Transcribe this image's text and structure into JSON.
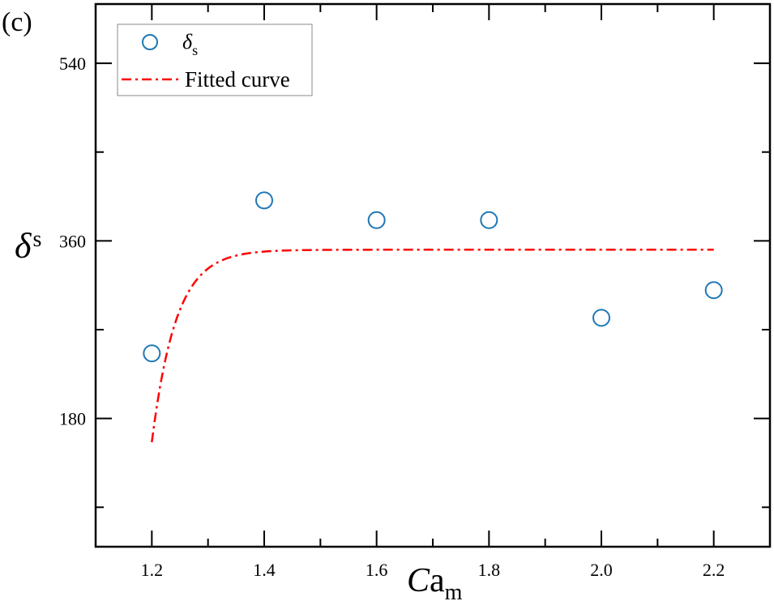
{
  "panel_label": "(c)",
  "chart_data": {
    "type": "scatter",
    "xlabel": {
      "main": "C",
      "rest": "a",
      "sub": "m"
    },
    "ylabel": {
      "main": "δ",
      "sub": "s"
    },
    "xlim": [
      1.1,
      2.3
    ],
    "ylim": [
      50,
      600
    ],
    "xticks": [
      1.2,
      1.4,
      1.6,
      1.8,
      2.0,
      2.2
    ],
    "xtick_labels": [
      "1.2",
      "1.4",
      "1.6",
      "1.8",
      "2.0",
      "2.2"
    ],
    "xminor": [
      1.3,
      1.5,
      1.7,
      1.9,
      2.1
    ],
    "yticks": [
      180,
      360,
      540
    ],
    "ytick_labels": [
      "180",
      "360",
      "540"
    ],
    "yminor": [
      90,
      270,
      450
    ],
    "grid": false,
    "legend_position": "top-left",
    "series": [
      {
        "name": "δs",
        "legend_main": "δ",
        "legend_sub": "s",
        "kind": "scatter",
        "marker": "open-circle",
        "color": "#1f77b4",
        "x": [
          1.2,
          1.4,
          1.6,
          1.8,
          2.0,
          2.2
        ],
        "y": [
          246,
          401,
          381,
          381,
          282,
          310
        ]
      },
      {
        "name": "Fitted curve",
        "kind": "line",
        "style": "dash-dot",
        "color": "#ff0000",
        "model": {
          "form": "y = A - B*exp(-(x-1.2)/t)",
          "A": 351,
          "B": 195,
          "t": 0.043
        },
        "x_range": [
          1.2,
          2.2
        ]
      }
    ]
  }
}
